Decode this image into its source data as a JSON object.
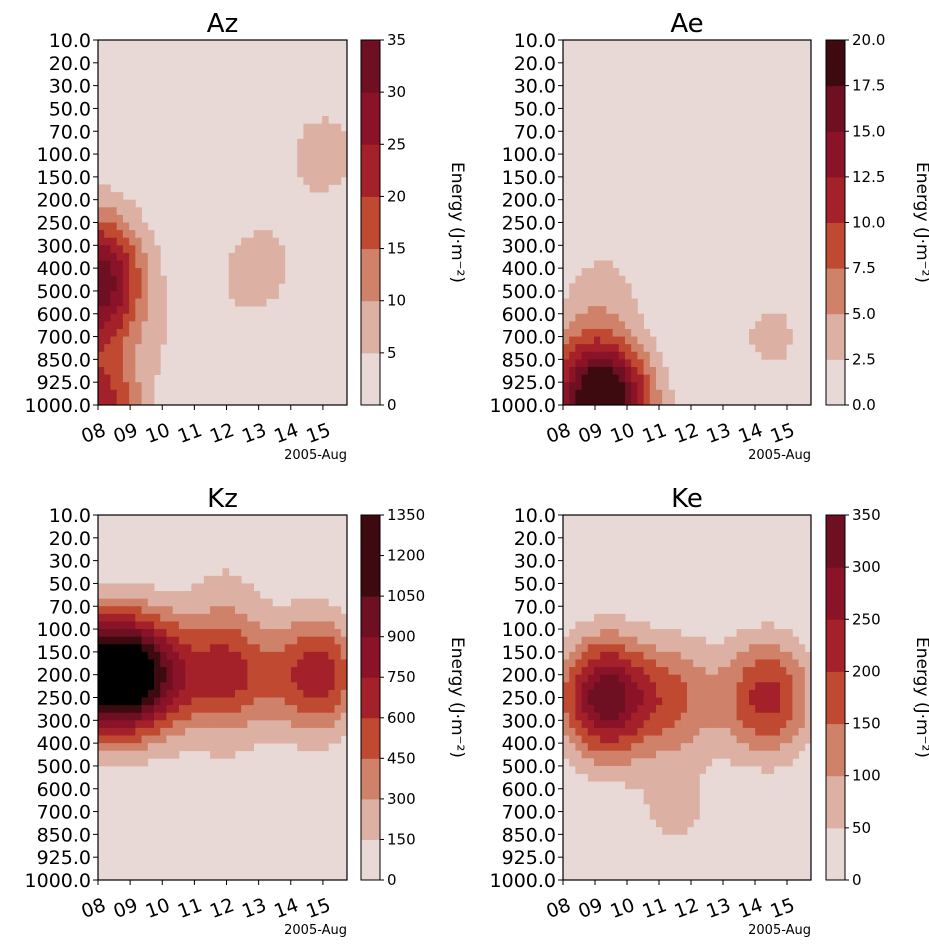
{
  "chart_data": [
    {
      "type": "contour",
      "title": "Az",
      "xlabel": "",
      "ylabel": "",
      "x_ticks": [
        "08",
        "09",
        "10",
        "11",
        "12",
        "13",
        "14",
        "15"
      ],
      "x_offset_label": "2005-Aug",
      "y_ticks": [
        "10.0",
        "20.0",
        "30.0",
        "50.0",
        "70.0",
        "100.0",
        "150.0",
        "200.0",
        "250.0",
        "300.0",
        "400.0",
        "500.0",
        "600.0",
        "700.0",
        "850.0",
        "925.0",
        "1000.0"
      ],
      "colorbar_label": "Energy (J·m⁻²)",
      "colorbar_ticks": [
        "0",
        "5",
        "10",
        "15",
        "20",
        "25",
        "30",
        "35"
      ],
      "levels": [
        0,
        5,
        10,
        15,
        20,
        25,
        30,
        35
      ],
      "fields": [
        {
          "t": 0,
          "p": 500,
          "value": 28
        },
        {
          "t": 0,
          "p": 1000,
          "value": 22
        },
        {
          "t": 0,
          "p": 300,
          "value": 10
        },
        {
          "t": 3,
          "p": 700,
          "value": 4
        },
        {
          "t": 5,
          "p": 400,
          "value": 7
        },
        {
          "t": 7,
          "p": 100,
          "value": 7
        }
      ]
    },
    {
      "type": "contour",
      "title": "Ae",
      "xlabel": "",
      "ylabel": "",
      "x_ticks": [
        "08",
        "09",
        "10",
        "11",
        "12",
        "13",
        "14",
        "15"
      ],
      "x_offset_label": "2005-Aug",
      "y_ticks": [
        "10.0",
        "20.0",
        "30.0",
        "50.0",
        "70.0",
        "100.0",
        "150.0",
        "200.0",
        "250.0",
        "300.0",
        "400.0",
        "500.0",
        "600.0",
        "700.0",
        "850.0",
        "925.0",
        "1000.0"
      ],
      "colorbar_label": "Energy (J·m⁻²)",
      "colorbar_ticks": [
        "0.0",
        "2.5",
        "5.0",
        "7.5",
        "10.0",
        "12.5",
        "15.0",
        "17.5",
        "20.0"
      ],
      "levels": [
        0,
        2.5,
        5,
        7.5,
        10,
        12.5,
        15,
        17.5,
        20
      ],
      "fields": [
        {
          "t": 1.4,
          "p": 1000,
          "value": 19
        },
        {
          "t": 0.5,
          "p": 925,
          "value": 6
        },
        {
          "t": 1.2,
          "p": 500,
          "value": 3
        },
        {
          "t": 6.5,
          "p": 700,
          "value": 3
        }
      ]
    },
    {
      "type": "contour",
      "title": "Kz",
      "xlabel": "",
      "ylabel": "",
      "x_ticks": [
        "08",
        "09",
        "10",
        "11",
        "12",
        "13",
        "14",
        "15"
      ],
      "x_offset_label": "2005-Aug",
      "y_ticks": [
        "10.0",
        "20.0",
        "30.0",
        "50.0",
        "70.0",
        "100.0",
        "150.0",
        "200.0",
        "250.0",
        "300.0",
        "400.0",
        "500.0",
        "600.0",
        "700.0",
        "850.0",
        "925.0",
        "1000.0"
      ],
      "colorbar_label": "Energy (J·m⁻²)",
      "colorbar_ticks": [
        "0",
        "150",
        "300",
        "450",
        "600",
        "750",
        "900",
        "1050",
        "1200",
        "1350"
      ],
      "levels": [
        0,
        150,
        300,
        450,
        600,
        750,
        900,
        1050,
        1200,
        1350
      ],
      "fields": [
        {
          "t": 0,
          "p": 200,
          "value": 1250
        },
        {
          "t": 1.5,
          "p": 200,
          "value": 950
        },
        {
          "t": 4,
          "p": 200,
          "value": 650
        },
        {
          "t": 6.8,
          "p": 200,
          "value": 700
        },
        {
          "t": 4,
          "p": 50,
          "value": 120
        },
        {
          "t": 4,
          "p": 700,
          "value": 100
        }
      ]
    },
    {
      "type": "contour",
      "title": "Ke",
      "xlabel": "",
      "ylabel": "",
      "x_ticks": [
        "08",
        "09",
        "10",
        "11",
        "12",
        "13",
        "14",
        "15"
      ],
      "x_offset_label": "2005-Aug",
      "y_ticks": [
        "10.0",
        "20.0",
        "30.0",
        "50.0",
        "70.0",
        "100.0",
        "150.0",
        "200.0",
        "250.0",
        "300.0",
        "400.0",
        "500.0",
        "600.0",
        "700.0",
        "850.0",
        "925.0",
        "1000.0"
      ],
      "colorbar_label": "Energy (J·m⁻²)",
      "colorbar_ticks": [
        "0",
        "50",
        "100",
        "150",
        "200",
        "250",
        "300",
        "350"
      ],
      "levels": [
        0,
        50,
        100,
        150,
        200,
        250,
        300,
        350
      ],
      "fields": [
        {
          "t": 1.3,
          "p": 250,
          "value": 330
        },
        {
          "t": 6.4,
          "p": 250,
          "value": 220
        },
        {
          "t": 3.5,
          "p": 250,
          "value": 140
        },
        {
          "t": 3.5,
          "p": 700,
          "value": 60
        },
        {
          "t": 4,
          "p": 20,
          "value": 20
        }
      ]
    }
  ],
  "colormap": [
    "#e8d9d6",
    "#dcb1a4",
    "#cf8169",
    "#c04a31",
    "#a4212a",
    "#8b1328",
    "#6e0f22",
    "#3d0a10"
  ]
}
